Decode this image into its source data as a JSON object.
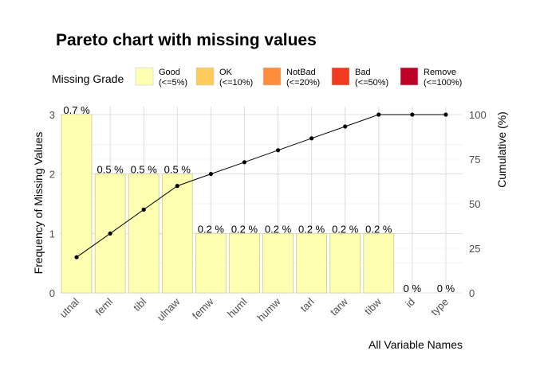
{
  "chart_data": {
    "type": "bar",
    "title": "Pareto chart with missing values",
    "xlabel": "All Variable Names",
    "ylabel": "Frequency of Missing Values",
    "y2label": "Cumulative (%)",
    "categories": [
      "utnal",
      "feml",
      "tibl",
      "ulnaw",
      "femw",
      "huml",
      "humw",
      "tarl",
      "tarw",
      "tibw",
      "id",
      "type"
    ],
    "values": [
      3,
      2,
      2,
      2,
      1,
      1,
      1,
      1,
      1,
      1,
      0,
      0
    ],
    "bar_labels": [
      "0.7 %",
      "0.5 %",
      "0.5 %",
      "0.5 %",
      "0.2 %",
      "0.2 %",
      "0.2 %",
      "0.2 %",
      "0.2 %",
      "0.2 %",
      "0 %",
      "0 %"
    ],
    "cumulative": [
      20,
      33.3,
      46.7,
      60,
      66.7,
      73.3,
      80,
      86.7,
      93.3,
      100,
      100,
      100
    ],
    "ylim": [
      0,
      3
    ],
    "y_ticks": [
      "0",
      "1",
      "2",
      "3"
    ],
    "y2lim": [
      0,
      100
    ],
    "y2_ticks": [
      "0",
      "25",
      "50",
      "75",
      "100"
    ],
    "grid": true,
    "legend": {
      "title": "Missing Grade",
      "position": "top",
      "items": [
        {
          "name": "Good",
          "range": "(<=5%)",
          "color": "#FFFFB2"
        },
        {
          "name": "OK",
          "range": "(<=10%)",
          "color": "#FECC5C"
        },
        {
          "name": "NotBad",
          "range": "(<=20%)",
          "color": "#FD8D3C"
        },
        {
          "name": "Bad",
          "range": "(<=50%)",
          "color": "#F03B20"
        },
        {
          "name": "Remove",
          "range": "(<=100%)",
          "color": "#BD0026"
        }
      ]
    },
    "bar_color": "#FFFFB2",
    "bar_border": "#cccc8e",
    "line_color": "#000000"
  }
}
